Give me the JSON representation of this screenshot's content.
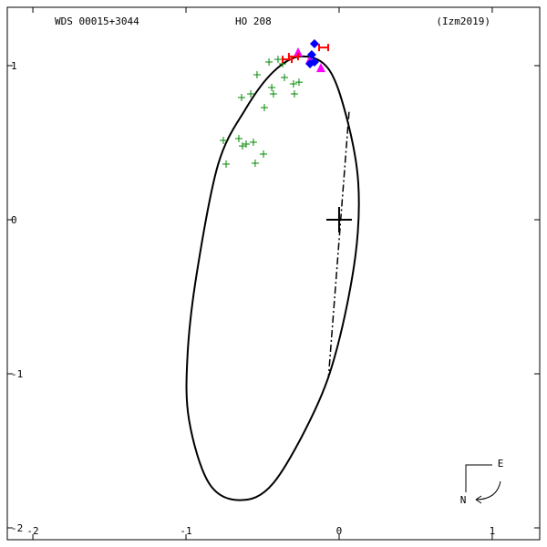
{
  "chart_data": {
    "type": "orbit",
    "title": "WDS 00015+3044",
    "subtitle": "HO  208",
    "annotation": "(Izm2019)",
    "compass": {
      "east": "E",
      "north": "N"
    },
    "xlim": [
      -2.167,
      1.31
    ],
    "ylim": [
      -2.077,
      1.379
    ],
    "xticks": [
      -2,
      -1,
      0,
      1
    ],
    "yticks": [
      1,
      0,
      -1,
      -2
    ],
    "primary": {
      "x": 0,
      "y": 0
    },
    "orbit": {
      "color": "#000000",
      "x": [
        -0.25,
        -0.07,
        0.05,
        0.125,
        0.107,
        -0.01,
        -0.16,
        -0.43,
        -0.65,
        -0.85,
        -0.98,
        -0.99,
        -0.93,
        -0.79,
        -0.61,
        -0.43
      ],
      "y": [
        1.06,
        0.98,
        0.66,
        0.24,
        -0.23,
        -0.82,
        -1.24,
        -1.71,
        -1.82,
        -1.71,
        -1.3,
        -0.88,
        -0.35,
        0.36,
        0.72,
        0.96
      ]
    },
    "nodes_line": {
      "color": "#000000",
      "x": [
        0.065,
        -0.07
      ],
      "y": [
        0.7,
        -1.03
      ]
    },
    "series": [
      {
        "color": "#008800",
        "marker": "plus",
        "x": [
          -0.756,
          -0.655,
          -0.607,
          -0.56,
          -0.494,
          -0.631,
          -0.548,
          -0.738,
          -0.637,
          -0.577,
          -0.488,
          -0.536,
          -0.44,
          -0.429,
          -0.458,
          -0.399,
          -0.369,
          -0.357,
          -0.298,
          -0.292,
          -0.262
        ],
        "y": [
          0.515,
          0.527,
          0.491,
          0.503,
          0.426,
          0.479,
          0.367,
          0.361,
          0.793,
          0.817,
          0.728,
          0.941,
          0.858,
          0.817,
          1.024,
          1.041,
          1.012,
          0.923,
          0.882,
          0.817,
          0.893
        ]
      },
      {
        "color": "#ff00ff",
        "marker": "triangle",
        "x": [
          -0.268,
          -0.119,
          -0.19
        ],
        "y": [
          1.083,
          0.982,
          1.036
        ]
      },
      {
        "color": "#ff0000",
        "marker": "errorbar",
        "x": [
          -0.339,
          -0.101,
          -0.298
        ],
        "y": [
          1.041,
          1.118,
          1.059
        ]
      },
      {
        "color": "#0000ff",
        "marker": "diamond",
        "x": [
          -0.161,
          -0.179,
          -0.161,
          -0.19
        ],
        "y": [
          1.142,
          1.071,
          1.024,
          1.012
        ]
      }
    ]
  }
}
